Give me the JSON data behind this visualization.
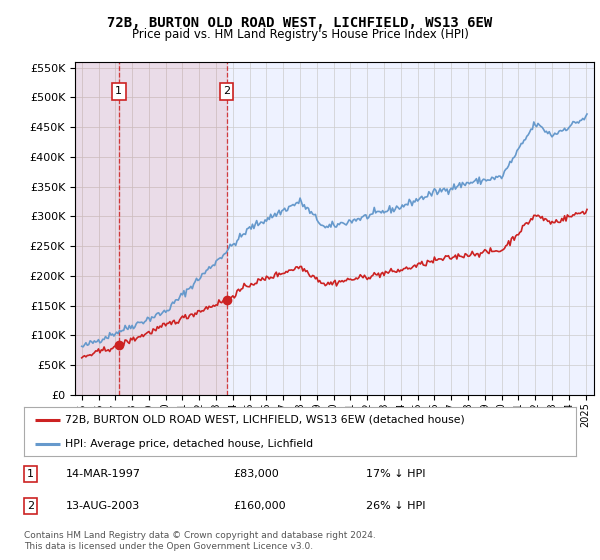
{
  "title": "72B, BURTON OLD ROAD WEST, LICHFIELD, WS13 6EW",
  "subtitle": "Price paid vs. HM Land Registry's House Price Index (HPI)",
  "legend_line1": "72B, BURTON OLD ROAD WEST, LICHFIELD, WS13 6EW (detached house)",
  "legend_line2": "HPI: Average price, detached house, Lichfield",
  "sale1_date": "14-MAR-1997",
  "sale1_price": "£83,000",
  "sale1_hpi": "17% ↓ HPI",
  "sale2_date": "13-AUG-2003",
  "sale2_price": "£160,000",
  "sale2_hpi": "26% ↓ HPI",
  "footnote1": "Contains HM Land Registry data © Crown copyright and database right 2024.",
  "footnote2": "This data is licensed under the Open Government Licence v3.0.",
  "hpi_color": "#6699cc",
  "price_color": "#cc2222",
  "plot_bg_color": "#eef2ff",
  "grid_color": "#cccccc",
  "sale1_x_year": 1997.2,
  "sale1_price_val": 83000,
  "sale2_x_year": 2003.62,
  "sale2_price_val": 160000,
  "ylim": [
    0,
    560000
  ],
  "yticks": [
    0,
    50000,
    100000,
    150000,
    200000,
    250000,
    300000,
    350000,
    400000,
    450000,
    500000,
    550000
  ],
  "xlim_start": 1994.6,
  "xlim_end": 2025.5
}
